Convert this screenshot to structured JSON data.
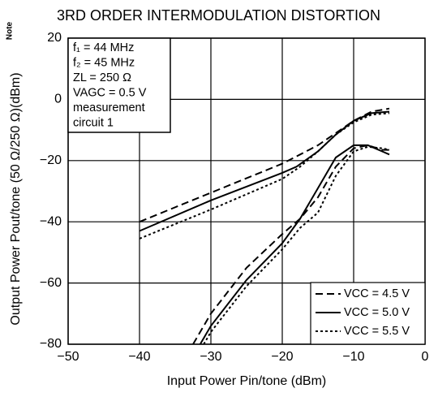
{
  "chart_data": {
    "type": "line",
    "title": "3RD ORDER INTERMODULATION DISTORTION",
    "x_label": "Input Power  Pin/tone (dBm)",
    "y_label": "Output Power  Pout/tone (50 Ω/250 Ω)(dBm)",
    "y_label_note": "Note",
    "annotations": [
      "f₁ = 44 MHz",
      "f₂ = 45 MHz",
      "ZL = 250 Ω",
      "VAGC = 0.5 V",
      "measurement",
      "circuit 1"
    ],
    "xlim": [
      -50,
      0
    ],
    "xticks": [
      {
        "value": -50,
        "label": "−50"
      },
      {
        "value": -40,
        "label": "−40"
      },
      {
        "value": -30,
        "label": "−30"
      },
      {
        "value": -20,
        "label": "−20"
      },
      {
        "value": -10,
        "label": "−10"
      },
      0
    ],
    "ylim": [
      -80,
      20
    ],
    "yticks": [
      {
        "value": -80,
        "label": "−80"
      },
      {
        "value": -60,
        "label": "−60"
      },
      {
        "value": -40,
        "label": "−40"
      },
      {
        "value": -20,
        "label": "−20"
      },
      0,
      20
    ],
    "grid": true,
    "legend": "lower right",
    "series": [
      {
        "name": "VCC = 4.5 V",
        "color": "#000000",
        "dash": "dashed",
        "x": [
          -40,
          -30,
          -20,
          -17.5,
          -15,
          -12.5,
          -10,
          -7.5,
          -5,
          null,
          -32.5,
          -30,
          -25,
          -20,
          -17.5,
          -15,
          -12.5,
          -10,
          -8,
          -6,
          -5
        ],
        "values": [
          -40,
          -30.5,
          -21,
          -18,
          -15,
          -11,
          -7,
          -4,
          -3,
          null,
          -80,
          -70,
          -55,
          -44,
          -39,
          -32,
          -22,
          -16,
          -15,
          -16.5,
          -16.5
        ]
      },
      {
        "name": "VCC = 5.0 V",
        "color": "#000000",
        "dash": "solid",
        "x": [
          -40,
          -30,
          -20,
          -18,
          -15,
          -12.5,
          -10,
          -7.5,
          -5,
          null,
          -31.5,
          -30,
          -25,
          -20,
          -17.5,
          -15,
          -12.5,
          -10,
          -8,
          -6,
          -5
        ],
        "values": [
          -43,
          -33,
          -24,
          -22,
          -17,
          -11.5,
          -7,
          -4.5,
          -4,
          null,
          -80,
          -74,
          -59,
          -47,
          -39,
          -29,
          -19,
          -15,
          -15,
          -17,
          -18
        ]
      },
      {
        "name": "VCC = 5.5 V",
        "color": "#000000",
        "dash": "dotted",
        "x": [
          -40,
          -30,
          -20,
          -17.5,
          -15,
          -12.5,
          -10,
          -7.5,
          -5,
          null,
          -31,
          -30,
          -25,
          -20,
          -17.5,
          -15,
          -12.5,
          -10,
          -8,
          -6,
          -5
        ],
        "values": [
          -45.5,
          -36,
          -26,
          -22,
          -17,
          -11.5,
          -7.5,
          -5,
          -4.5,
          null,
          -80,
          -76,
          -61,
          -49,
          -42,
          -37,
          -25,
          -17,
          -15.5,
          -16,
          -16.5
        ]
      }
    ]
  }
}
